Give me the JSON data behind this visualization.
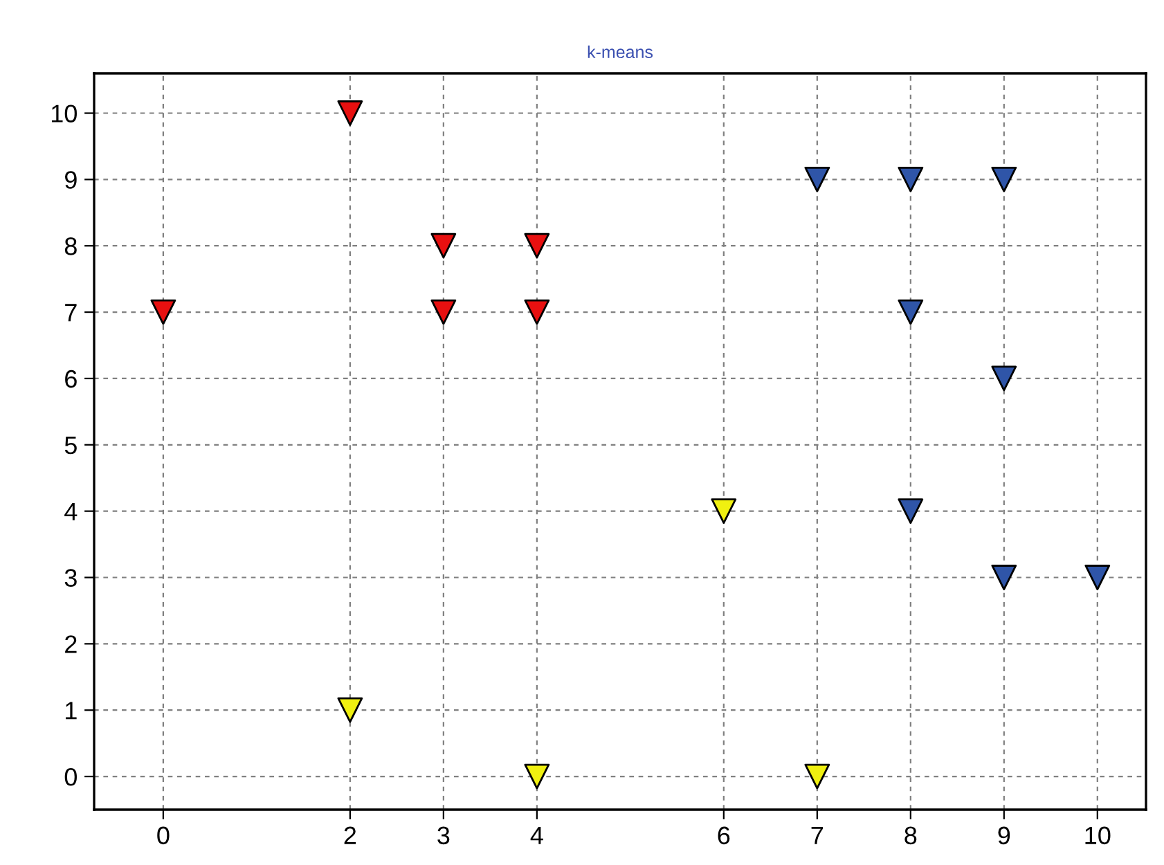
{
  "chart_data": {
    "type": "scatter",
    "title": "k-means",
    "marker": "triangle",
    "grid": true,
    "legend": false,
    "xlim": [
      -0.74,
      10.52
    ],
    "ylim": [
      -0.5,
      10.6
    ],
    "xticks": [
      0,
      2,
      3,
      4,
      6,
      7,
      8,
      9,
      10
    ],
    "yticks": [
      0,
      1,
      2,
      3,
      4,
      5,
      6,
      7,
      8,
      9,
      10
    ],
    "series": [
      {
        "color": "#e81010",
        "x": [
          0,
          2,
          3,
          3,
          4,
          4
        ],
        "values": [
          7,
          10,
          8,
          7,
          8,
          7
        ]
      },
      {
        "color": "#f0f010",
        "x": [
          2,
          4,
          6,
          7
        ],
        "values": [
          1,
          0,
          4,
          0
        ]
      },
      {
        "color": "#2f55a8",
        "x": [
          7,
          8,
          9,
          8,
          9,
          8,
          9,
          10
        ],
        "values": [
          9,
          9,
          9,
          7,
          6,
          4,
          3,
          3
        ]
      }
    ]
  }
}
